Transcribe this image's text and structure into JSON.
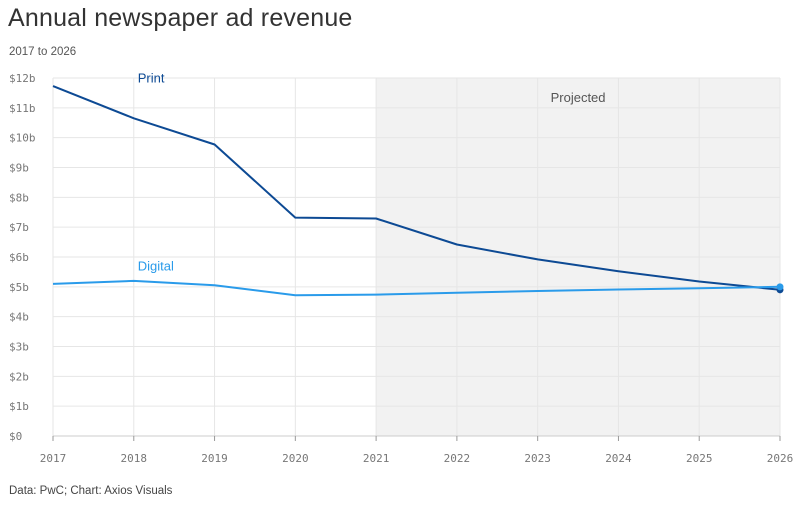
{
  "header": {
    "title": "Annual newspaper ad revenue",
    "subtitle": "2017 to 2026"
  },
  "footer": {
    "source": "Data: PwC; Chart: Axios Visuals"
  },
  "colors": {
    "print": "#0d4a94",
    "digital": "#2a9bea",
    "projected_band": "#f2f2f2",
    "grid": "#e6e6e6"
  },
  "chart_data": {
    "type": "line",
    "title": "Annual newspaper ad revenue",
    "subtitle": "2017 to 2026",
    "x": [
      2017,
      2018,
      2019,
      2020,
      2021,
      2022,
      2023,
      2024,
      2025,
      2026
    ],
    "x_tick_labels": [
      "2017",
      "2018",
      "2019",
      "2020",
      "2021",
      "2022",
      "2023",
      "2024",
      "2025",
      "2026"
    ],
    "y_tick_labels": [
      "$0",
      "$1b",
      "$2b",
      "$3b",
      "$4b",
      "$5b",
      "$6b",
      "$7b",
      "$8b",
      "$9b",
      "$10b",
      "$11b",
      "$12b"
    ],
    "ylim": [
      0,
      12
    ],
    "grid": true,
    "series": [
      {
        "name": "Print",
        "values": [
          11.73,
          10.65,
          9.77,
          7.32,
          7.29,
          6.42,
          5.92,
          5.52,
          5.18,
          4.9
        ]
      },
      {
        "name": "Digital",
        "values": [
          5.1,
          5.2,
          5.05,
          4.72,
          4.74,
          4.8,
          4.86,
          4.91,
          4.95,
          5.0
        ]
      }
    ],
    "annotations": [
      {
        "text": "Projected",
        "x_range": [
          2021,
          2026
        ]
      }
    ]
  }
}
